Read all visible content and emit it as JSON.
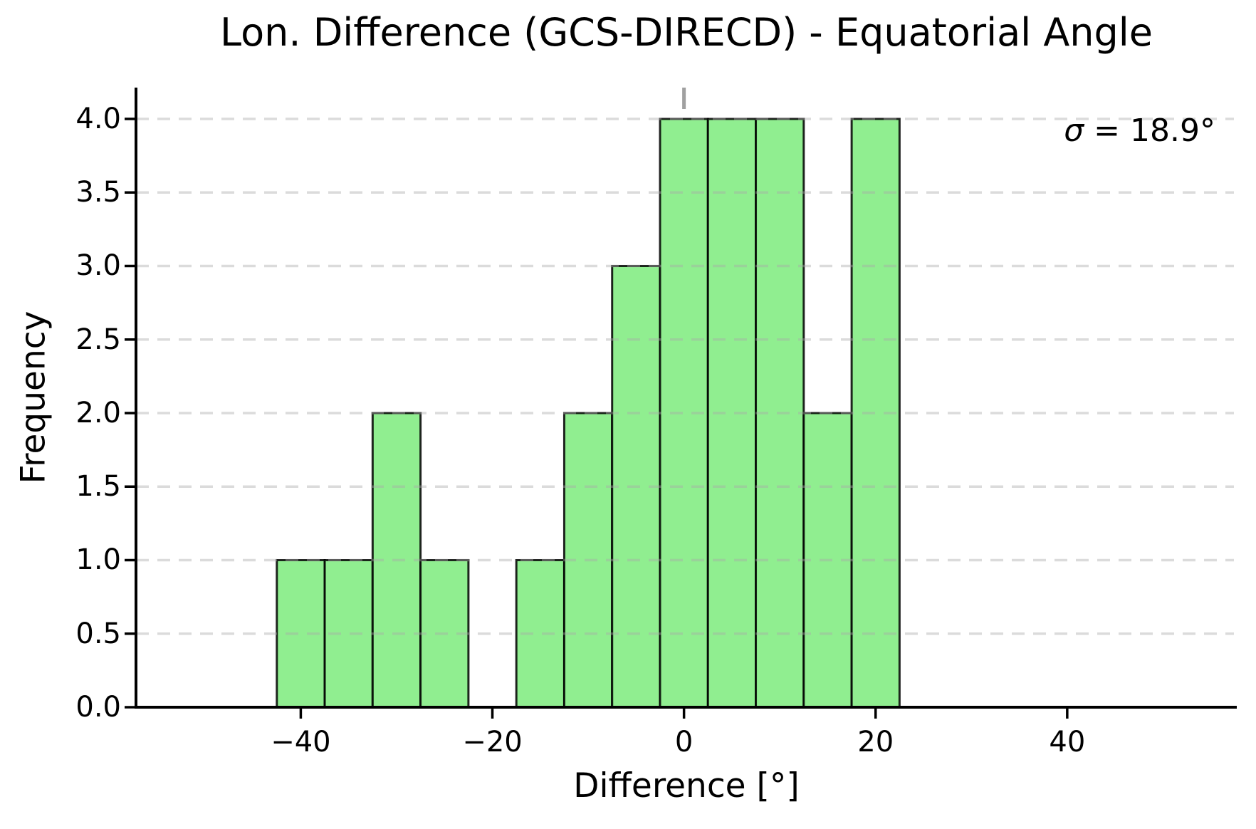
{
  "chart_data": {
    "type": "histogram",
    "title": "Lon. Difference (GCS-DIRECD) - Equatorial Angle",
    "xlabel": "Difference [°]",
    "ylabel": "Frequency",
    "annotation": {
      "symbol": "σ",
      "rest": " = 18.9°"
    },
    "bin_edges": [
      -42.5,
      -37.5,
      -32.5,
      -27.5,
      -22.5,
      -17.5,
      -12.5,
      -7.5,
      -2.5,
      2.5,
      7.5,
      12.5,
      17.5,
      22.5
    ],
    "counts": [
      1,
      1,
      2,
      1,
      0,
      1,
      2,
      3,
      4,
      4,
      4,
      2,
      4
    ],
    "total_count": 29,
    "bin_width_deg": 5,
    "x_ticks": [
      {
        "value": -40,
        "label": "−40"
      },
      {
        "value": -20,
        "label": "−20"
      },
      {
        "value": 0,
        "label": "0"
      },
      {
        "value": 20,
        "label": "20"
      },
      {
        "value": 40,
        "label": "40"
      }
    ],
    "y_ticks": [
      {
        "value": 0.0,
        "label": "0.0"
      },
      {
        "value": 0.5,
        "label": "0.5"
      },
      {
        "value": 1.0,
        "label": "1.0"
      },
      {
        "value": 1.5,
        "label": "1.5"
      },
      {
        "value": 2.0,
        "label": "2.0"
      },
      {
        "value": 2.5,
        "label": "2.5"
      },
      {
        "value": 3.0,
        "label": "3.0"
      },
      {
        "value": 3.5,
        "label": "3.5"
      },
      {
        "value": 4.0,
        "label": "4.0"
      }
    ],
    "xlim": [
      -57.2,
      57.7
    ],
    "ylim": [
      0,
      4.213
    ],
    "vline_x": 0,
    "grid": true,
    "legend": null,
    "colors": {
      "bar_fill": "#90EE90",
      "bar_fill_alpha": 0.8,
      "bar_edge": "rgba(0,0,0,0.85)",
      "grid_line": "rgba(170,170,170,0.42)",
      "vline": "#A0A0A0",
      "spine": "#000000",
      "text": "#000000",
      "background": "#FFFFFF"
    }
  }
}
